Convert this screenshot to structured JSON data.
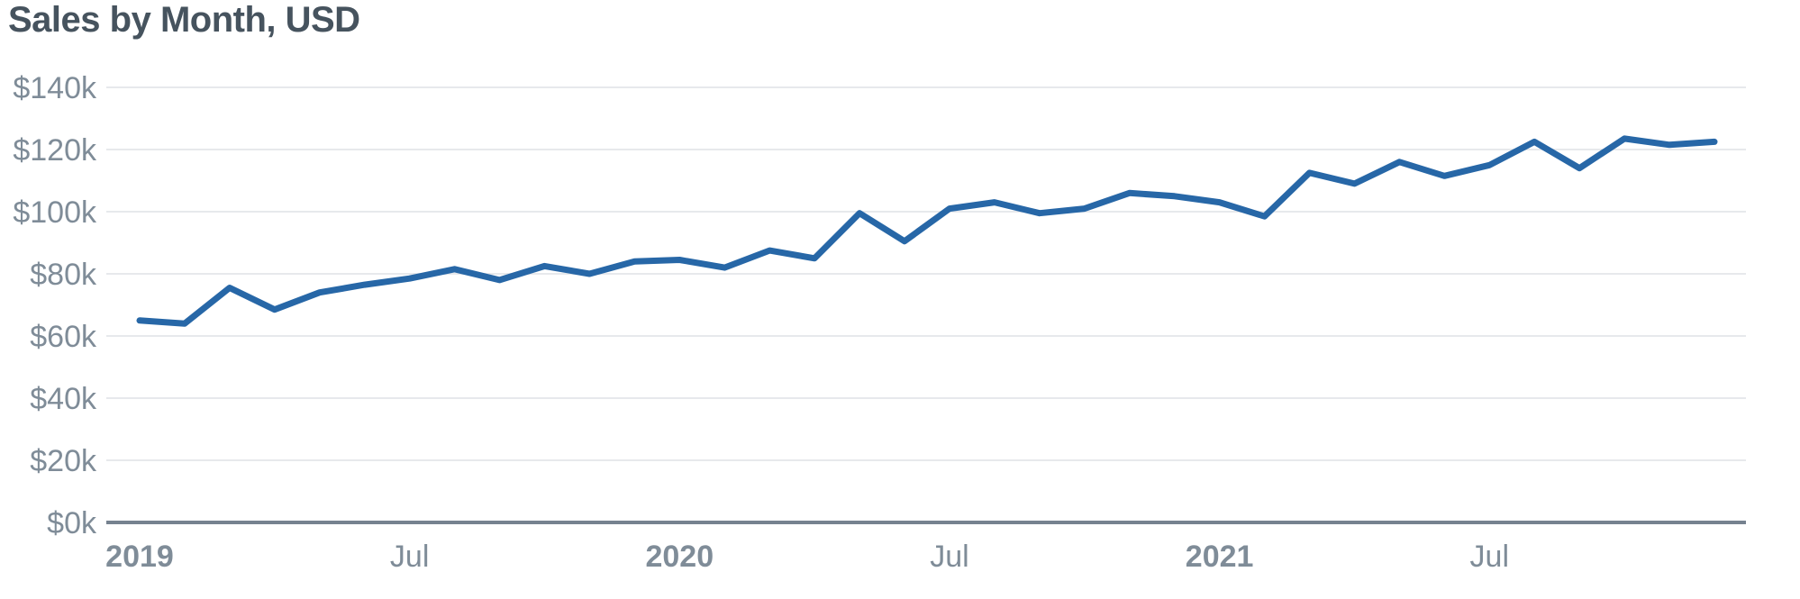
{
  "title": "Sales by Month, USD",
  "colors": {
    "line": "#2767a7",
    "title_text": "#46535e",
    "axis_text": "#7f8c98",
    "gridline": "#e7e9ec",
    "baseline": "#76828f",
    "background": "#ffffff"
  },
  "chart_data": {
    "type": "line",
    "title": "Sales by Month, USD",
    "x": [
      "Jan 2019",
      "Feb 2019",
      "Mar 2019",
      "Apr 2019",
      "May 2019",
      "Jun 2019",
      "Jul 2019",
      "Aug 2019",
      "Sep 2019",
      "Oct 2019",
      "Nov 2019",
      "Dec 2019",
      "Jan 2020",
      "Feb 2020",
      "Mar 2020",
      "Apr 2020",
      "May 2020",
      "Jun 2020",
      "Jul 2020",
      "Aug 2020",
      "Sep 2020",
      "Oct 2020",
      "Nov 2020",
      "Dec 2020",
      "Jan 2021",
      "Feb 2021",
      "Mar 2021",
      "Apr 2021",
      "May 2021",
      "Jun 2021",
      "Jul 2021",
      "Aug 2021",
      "Sep 2021",
      "Oct 2021",
      "Nov 2021",
      "Dec 2021"
    ],
    "values": [
      65000,
      64000,
      75500,
      68500,
      74000,
      76500,
      78500,
      81500,
      78000,
      82500,
      80000,
      84000,
      84500,
      82000,
      87500,
      85000,
      99500,
      90500,
      101000,
      103000,
      99500,
      101000,
      106000,
      105000,
      103000,
      98500,
      112500,
      109000,
      116000,
      111500,
      115000,
      122500,
      114000,
      123500,
      121500,
      122500
    ],
    "ylabel": "USD",
    "xlabel": "",
    "ylim": [
      0,
      140000
    ],
    "ytick_step": 20000,
    "ytick_labels": [
      "$0k",
      "$20k",
      "$40k",
      "$60k",
      "$80k",
      "$100k",
      "$120k",
      "$140k"
    ],
    "xticks": [
      {
        "index": 0,
        "label": "2019",
        "bold": true
      },
      {
        "index": 6,
        "label": "Jul",
        "bold": false
      },
      {
        "index": 12,
        "label": "2020",
        "bold": true
      },
      {
        "index": 18,
        "label": "Jul",
        "bold": false
      },
      {
        "index": 24,
        "label": "2021",
        "bold": true
      },
      {
        "index": 30,
        "label": "Jul",
        "bold": false
      }
    ],
    "grid": "horizontal",
    "legend": "none"
  }
}
